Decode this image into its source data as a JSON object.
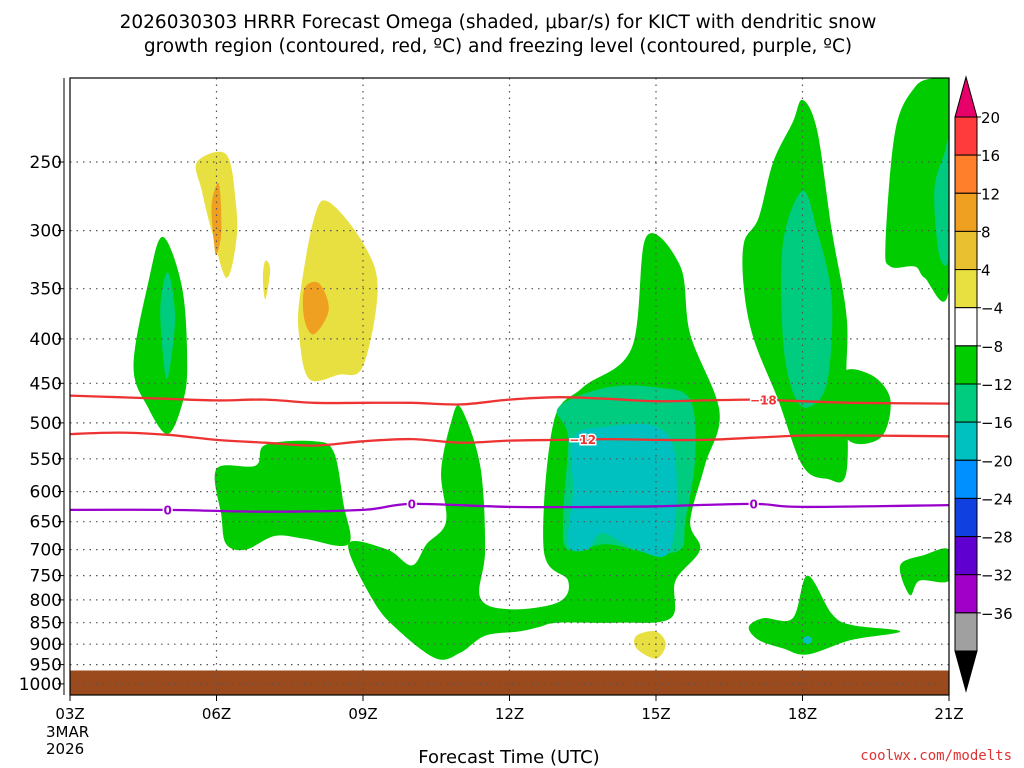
{
  "chart_data": {
    "type": "contour",
    "title_line1": "2026030303 HRRR Forecast Omega (shaded, μbar/s) for KICT with dendritic snow",
    "title_line2": "growth region (contoured, red, ºC) and freezing level (contoured, purple, ºC)",
    "xlabel": "Forecast Time (UTC)",
    "watermark": "coolwx.com/modelts",
    "x_range": [
      3,
      21
    ],
    "x_ticks": [
      {
        "v": 3,
        "label": "03Z"
      },
      {
        "v": 6,
        "label": "06Z"
      },
      {
        "v": 9,
        "label": "09Z"
      },
      {
        "v": 12,
        "label": "12Z"
      },
      {
        "v": 15,
        "label": "15Z"
      },
      {
        "v": 18,
        "label": "18Z"
      },
      {
        "v": 21,
        "label": "21Z"
      }
    ],
    "x_date_lines": [
      "3MAR",
      "2026"
    ],
    "y_unit": "hPa (log scale)",
    "y_range": [
      1030,
      200
    ],
    "y_ticks": [
      250,
      300,
      350,
      400,
      450,
      500,
      550,
      600,
      650,
      700,
      750,
      800,
      850,
      900,
      950,
      1000
    ],
    "surface_pressure": 965,
    "colorbar": {
      "labels": [
        "20",
        "16",
        "12",
        "8",
        "4",
        "−4",
        "−8",
        "−12",
        "−16",
        "−20",
        "−24",
        "−28",
        "−32",
        "−36"
      ],
      "colors": [
        "#ff3b3b",
        "#ff7f2a",
        "#f0a020",
        "#e8c030",
        "#e8e040",
        "#ffffff",
        "#00cc00",
        "#00cc80",
        "#00c0c0",
        "#0090ff",
        "#1040e0",
        "#6000d0",
        "#a000c8",
        "#a0a0a0"
      ],
      "top_arrow_color": "#e8006a",
      "bottom_arrow_color": "#000000"
    },
    "colors": {
      "omega_neg4": "#00cc00",
      "omega_neg8": "#00cc80",
      "omega_neg12": "#00c0c0",
      "omega_pos4": "#e8e040",
      "omega_pos8": "#f0a020",
      "surface": "#9b4a1e",
      "dgz_line": "#ee3333",
      "freezing_line": "#9900cc"
    },
    "dgz_contours": [
      {
        "label": "−18",
        "label_at": 17.2,
        "points": [
          [
            3,
            465
          ],
          [
            4,
            467
          ],
          [
            5,
            469
          ],
          [
            6,
            471
          ],
          [
            7,
            470
          ],
          [
            8,
            474
          ],
          [
            9,
            474
          ],
          [
            10,
            474
          ],
          [
            11,
            476
          ],
          [
            12,
            470
          ],
          [
            13,
            467
          ],
          [
            14,
            469
          ],
          [
            15,
            472
          ],
          [
            16,
            471
          ],
          [
            17,
            470
          ],
          [
            18,
            472
          ],
          [
            19,
            474
          ],
          [
            21,
            475
          ]
        ]
      },
      {
        "label": "−12",
        "label_at": 13.5,
        "points": [
          [
            3,
            515
          ],
          [
            4,
            513
          ],
          [
            5,
            516
          ],
          [
            6,
            523
          ],
          [
            7,
            527
          ],
          [
            8,
            531
          ],
          [
            9,
            525
          ],
          [
            10,
            522
          ],
          [
            11,
            527
          ],
          [
            12,
            524
          ],
          [
            13,
            523
          ],
          [
            14,
            522
          ],
          [
            15,
            523
          ],
          [
            16,
            523
          ],
          [
            17,
            520
          ],
          [
            18,
            517
          ],
          [
            19,
            517
          ],
          [
            21,
            518
          ]
        ]
      }
    ],
    "freezing_contour": {
      "label": "0",
      "label_at": [
        5,
        10,
        17
      ],
      "points": [
        [
          3,
          630
        ],
        [
          5,
          630
        ],
        [
          7,
          633
        ],
        [
          9,
          630
        ],
        [
          10,
          620
        ],
        [
          12,
          625
        ],
        [
          14,
          625
        ],
        [
          15,
          624
        ],
        [
          17,
          620
        ],
        [
          18,
          625
        ],
        [
          21,
          622
        ]
      ]
    },
    "omega_regions": [
      {
        "level": -4,
        "points": [
          [
            4.3,
            430
          ],
          [
            4.6,
            345
          ],
          [
            4.9,
            305
          ],
          [
            5.3,
            350
          ],
          [
            5.4,
            430
          ],
          [
            5.3,
            475
          ],
          [
            5,
            515
          ],
          [
            4.6,
            480
          ]
        ]
      },
      {
        "level": -8,
        "points": [
          [
            4.85,
            370
          ],
          [
            5.0,
            335
          ],
          [
            5.15,
            375
          ],
          [
            5.05,
            430
          ],
          [
            4.95,
            440
          ]
        ]
      },
      {
        "level": 4,
        "points": [
          [
            5.6,
            250
          ],
          [
            6.2,
            245
          ],
          [
            6.4,
            280
          ],
          [
            6.4,
            310
          ],
          [
            6.2,
            340
          ],
          [
            5.9,
            300
          ],
          [
            5.7,
            270
          ]
        ]
      },
      {
        "level": 8,
        "points": [
          [
            5.9,
            280
          ],
          [
            6.05,
            265
          ],
          [
            6.1,
            300
          ],
          [
            6.0,
            320
          ],
          [
            5.95,
            310
          ]
        ]
      },
      {
        "level": 4,
        "points": [
          [
            7.0,
            325
          ],
          [
            7.1,
            333
          ],
          [
            7.0,
            360
          ],
          [
            6.95,
            340
          ]
        ]
      },
      {
        "level": 4,
        "points": [
          [
            7.7,
            360
          ],
          [
            8,
            290
          ],
          [
            8.3,
            278
          ],
          [
            9,
            310
          ],
          [
            9.3,
            350
          ],
          [
            9.0,
            430
          ],
          [
            8.5,
            440
          ],
          [
            7.9,
            445
          ],
          [
            7.7,
            400
          ]
        ]
      },
      {
        "level": 8,
        "points": [
          [
            7.8,
            350
          ],
          [
            8.1,
            345
          ],
          [
            8.3,
            370
          ],
          [
            8.0,
            395
          ],
          [
            7.8,
            380
          ]
        ]
      },
      {
        "level": -4,
        "points": [
          [
            6.0,
            565
          ],
          [
            6.8,
            560
          ],
          [
            7.0,
            530
          ],
          [
            8.0,
            525
          ],
          [
            8.4,
            540
          ],
          [
            8.6,
            620
          ],
          [
            8.7,
            690
          ],
          [
            7.8,
            680
          ],
          [
            7.2,
            675
          ],
          [
            6.6,
            700
          ],
          [
            6.2,
            690
          ],
          [
            6.1,
            640
          ]
        ]
      },
      {
        "level": -4,
        "points": [
          [
            8.7,
            690
          ],
          [
            9.5,
            700
          ],
          [
            10,
            730
          ],
          [
            10.3,
            690
          ],
          [
            10.7,
            650
          ],
          [
            10.6,
            570
          ],
          [
            10.8,
            500
          ],
          [
            11,
            480
          ],
          [
            11.4,
            560
          ],
          [
            11.5,
            700
          ],
          [
            11.4,
            795
          ],
          [
            12.0,
            820
          ],
          [
            13.0,
            805
          ],
          [
            13.2,
            760
          ],
          [
            12.7,
            700
          ],
          [
            12.9,
            500
          ],
          [
            13.5,
            455
          ],
          [
            14.5,
            410
          ],
          [
            14.8,
            305
          ],
          [
            15.5,
            330
          ],
          [
            15.7,
            395
          ],
          [
            16.3,
            485
          ],
          [
            16.0,
            560
          ],
          [
            15.7,
            650
          ],
          [
            15.9,
            700
          ],
          [
            15.4,
            760
          ],
          [
            15.3,
            840
          ],
          [
            14.2,
            850
          ],
          [
            13.0,
            850
          ],
          [
            12.6,
            860
          ],
          [
            12.2,
            870
          ],
          [
            11.5,
            880
          ],
          [
            11.0,
            920
          ],
          [
            10.5,
            935
          ],
          [
            9.7,
            865
          ],
          [
            9.2,
            800
          ]
        ]
      },
      {
        "level": -8,
        "points": [
          [
            13.0,
            480
          ],
          [
            14,
            455
          ],
          [
            15,
            455
          ],
          [
            15.7,
            470
          ],
          [
            15.8,
            550
          ],
          [
            15.6,
            650
          ],
          [
            15.5,
            700
          ],
          [
            14.8,
            705
          ],
          [
            14,
            690
          ],
          [
            13.2,
            700
          ],
          [
            13.1,
            640
          ],
          [
            13.2,
            520
          ]
        ]
      },
      {
        "level": -12,
        "points": [
          [
            13.3,
            520
          ],
          [
            14,
            505
          ],
          [
            15,
            505
          ],
          [
            15.4,
            550
          ],
          [
            15.3,
            700
          ],
          [
            14.6,
            700
          ],
          [
            13.9,
            670
          ],
          [
            13.6,
            700
          ],
          [
            13.2,
            690
          ],
          [
            13.3,
            600
          ]
        ]
      },
      {
        "level": 4,
        "points": [
          [
            14.6,
            880
          ],
          [
            15.0,
            870
          ],
          [
            15.2,
            900
          ],
          [
            15.0,
            935
          ],
          [
            14.6,
            910
          ]
        ]
      },
      {
        "level": -4,
        "points": [
          [
            16.8,
            310
          ],
          [
            17.1,
            290
          ],
          [
            17.4,
            250
          ],
          [
            17.8,
            225
          ],
          [
            18.0,
            212
          ],
          [
            18.3,
            230
          ],
          [
            18.6,
            300
          ],
          [
            18.9,
            375
          ],
          [
            18.9,
            440
          ],
          [
            18.9,
            570
          ],
          [
            18.5,
            580
          ],
          [
            18.0,
            560
          ],
          [
            17.5,
            470
          ],
          [
            17.0,
            400
          ],
          [
            16.8,
            350
          ]
        ]
      },
      {
        "level": -8,
        "points": [
          [
            17.6,
            310
          ],
          [
            18.0,
            270
          ],
          [
            18.3,
            300
          ],
          [
            18.6,
            360
          ],
          [
            18.5,
            450
          ],
          [
            18.1,
            480
          ],
          [
            17.8,
            460
          ],
          [
            17.6,
            400
          ]
        ]
      },
      {
        "level": -4,
        "points": [
          [
            18.8,
            440
          ],
          [
            19.4,
            440
          ],
          [
            19.8,
            470
          ],
          [
            19.6,
            520
          ],
          [
            18.9,
            520
          ]
        ]
      },
      {
        "level": -4,
        "points": [
          [
            19.7,
            310
          ],
          [
            19.9,
            230
          ],
          [
            20.3,
            205
          ],
          [
            20.7,
            200
          ],
          [
            21,
            200
          ],
          [
            21,
            350
          ],
          [
            20.5,
            340
          ],
          [
            20.3,
            330
          ],
          [
            19.8,
            330
          ]
        ]
      },
      {
        "level": -8,
        "points": [
          [
            20.7,
            270
          ],
          [
            20.9,
            245
          ],
          [
            21,
            240
          ],
          [
            21,
            320
          ],
          [
            20.8,
            320
          ]
        ]
      },
      {
        "level": -4,
        "points": [
          [
            20.0,
            730
          ],
          [
            20.5,
            710
          ],
          [
            21,
            700
          ],
          [
            21,
            760
          ],
          [
            20.4,
            760
          ],
          [
            20.2,
            790
          ]
        ]
      },
      {
        "level": -4,
        "points": [
          [
            16.9,
            860
          ],
          [
            17.2,
            840
          ],
          [
            17.8,
            840
          ],
          [
            18.1,
            750
          ],
          [
            18.6,
            830
          ],
          [
            19.0,
            855
          ],
          [
            20.0,
            870
          ],
          [
            19.0,
            890
          ],
          [
            18.1,
            925
          ],
          [
            17.6,
            910
          ],
          [
            17.1,
            890
          ]
        ]
      },
      {
        "level": -12,
        "points": [
          [
            18.0,
            890
          ],
          [
            18.1,
            880
          ],
          [
            18.2,
            890
          ],
          [
            18.1,
            900
          ]
        ]
      }
    ]
  }
}
